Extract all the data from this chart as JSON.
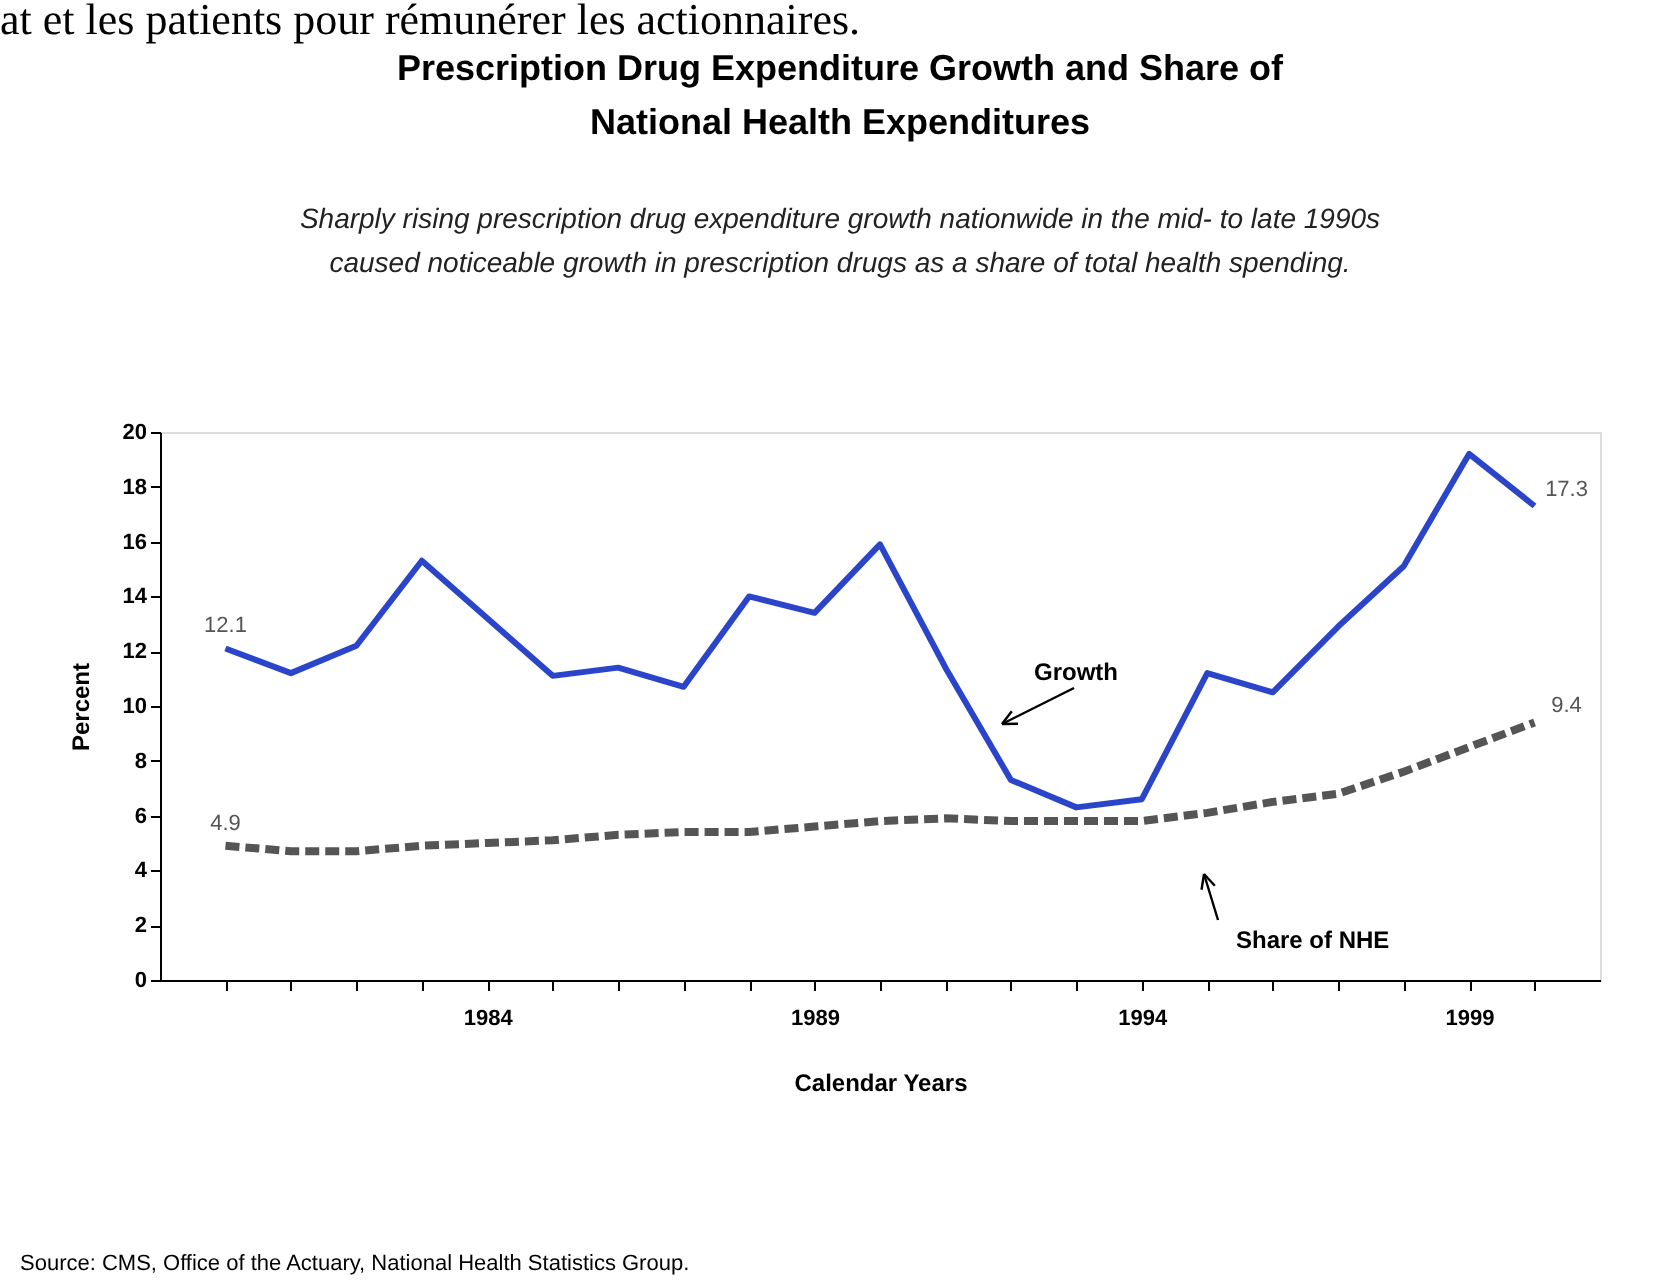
{
  "chart_data": {
    "type": "line",
    "title": "Prescription Drug Expenditure Growth and Share of National Health Expenditures",
    "subtitle": "Sharply rising prescription drug expenditure growth nationwide in the mid- to late 1990s caused noticeable growth in prescription drugs as a share of total health spending.",
    "xlabel": "Calendar Years",
    "ylabel": "Percent",
    "x": [
      1980,
      1981,
      1982,
      1983,
      1984,
      1985,
      1986,
      1987,
      1988,
      1989,
      1990,
      1991,
      1992,
      1993,
      1994,
      1995,
      1996,
      1997,
      1998,
      1999,
      2000
    ],
    "series": [
      {
        "color": "#2a45c9",
        "line_style": "solid",
        "values": [
          12.1,
          11.2,
          12.2,
          15.3,
          13.2,
          11.1,
          11.4,
          10.7,
          14.0,
          13.4,
          15.9,
          11.4,
          7.3,
          6.3,
          6.6,
          11.2,
          10.5,
          12.9,
          15.1,
          19.2,
          17.3
        ],
        "value_labels": [
          "12.1",
          null,
          null,
          null,
          null,
          null,
          null,
          null,
          null,
          null,
          null,
          null,
          null,
          null,
          null,
          null,
          null,
          null,
          null,
          null,
          "17.3"
        ]
      },
      {
        "color": "#555555",
        "line_style": "dashed",
        "values": [
          4.9,
          4.7,
          4.7,
          4.9,
          5.0,
          5.1,
          5.3,
          5.4,
          5.4,
          5.6,
          5.8,
          5.9,
          5.8,
          5.8,
          5.8,
          6.1,
          6.5,
          6.8,
          7.6,
          8.5,
          9.4
        ],
        "value_labels": [
          "4.9",
          null,
          null,
          null,
          null,
          null,
          null,
          null,
          null,
          null,
          null,
          null,
          null,
          null,
          null,
          null,
          null,
          null,
          null,
          null,
          "9.4"
        ]
      }
    ],
    "xlim": [
      1979,
      2001
    ],
    "xticks": [
      {
        "value": 1980,
        "label": null
      },
      {
        "value": 1981,
        "label": null
      },
      {
        "value": 1982,
        "label": null
      },
      {
        "value": 1983,
        "label": null
      },
      1984,
      {
        "value": 1985,
        "label": null
      },
      {
        "value": 1986,
        "label": null
      },
      {
        "value": 1987,
        "label": null
      },
      {
        "value": 1988,
        "label": null
      },
      1989,
      {
        "value": 1990,
        "label": null
      },
      {
        "value": 1991,
        "label": null
      },
      {
        "value": 1992,
        "label": null
      },
      {
        "value": 1993,
        "label": null
      },
      1994,
      {
        "value": 1995,
        "label": null
      },
      {
        "value": 1996,
        "label": null
      },
      {
        "value": 1997,
        "label": null
      },
      {
        "value": 1998,
        "label": null
      },
      1999,
      {
        "value": 2000,
        "label": null
      }
    ],
    "ylim": [
      0,
      20
    ],
    "yticks": [
      0,
      2,
      4,
      6,
      8,
      10,
      12,
      14,
      16,
      18,
      20
    ],
    "grid": false,
    "marker": "none",
    "annotations": [
      "Growth",
      "Share of NHE",
      "Source: CMS, Office of the Actuary, National Health Statistics Group.",
      "at et les patients pour rémunérer les actionnaires."
    ]
  }
}
